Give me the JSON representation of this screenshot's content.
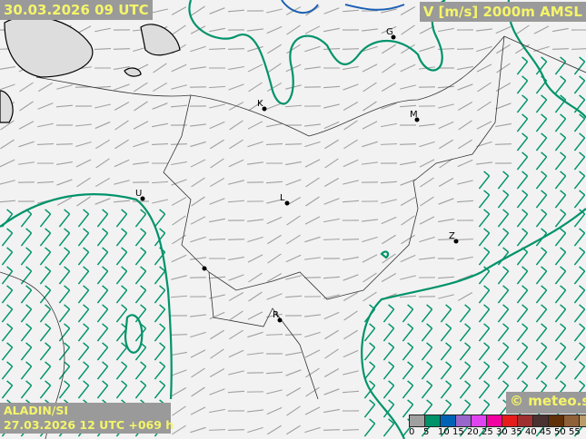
{
  "header": {
    "valid_time": "30.03.2026 09 UTC",
    "parameter": "V [m/s] 2000m AMSL"
  },
  "footer": {
    "model": "ALADIN/SI",
    "run": "27.03.2026 12 UTC +069 h",
    "copyright": "© meteo.si"
  },
  "legend": {
    "ticks": [
      "0",
      "5",
      "10",
      "15",
      "20",
      "25",
      "30",
      "35",
      "40",
      "45",
      "50",
      "55"
    ],
    "colors": [
      "#a0a0a0",
      "#00936a",
      "#0062b4",
      "#9966cc",
      "#e044f0",
      "#f000a0",
      "#e61c1c",
      "#9e3030",
      "#4a3232",
      "#603008",
      "#906038",
      "#b89c6a"
    ]
  },
  "cities": [
    "G",
    "K",
    "M",
    "U",
    "L",
    "Z",
    "R"
  ],
  "colors": {
    "background": "#f2f2f2",
    "barb_low": "#a0a0a0",
    "barb_mid": "#00936a",
    "contour": "#00936a",
    "water": "#1a5fb4"
  }
}
